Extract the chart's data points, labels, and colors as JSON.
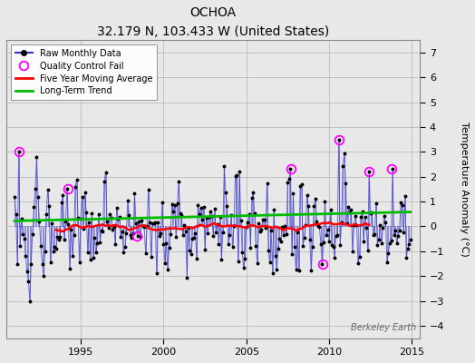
{
  "title": "OCHOA",
  "subtitle": "32.179 N, 103.433 W (United States)",
  "ylabel": "Temperature Anomaly (°C)",
  "watermark": "Berkeley Earth",
  "ylim": [
    -4.5,
    7.5
  ],
  "yticks": [
    -4,
    -3,
    -2,
    -1,
    0,
    1,
    2,
    3,
    4,
    5,
    6,
    7
  ],
  "xlim": [
    1990.5,
    2015.5
  ],
  "xticks": [
    1995,
    2000,
    2005,
    2010,
    2015
  ],
  "raw_color": "#3333cc",
  "moving_avg_color": "#ff0000",
  "trend_color": "#00bb00",
  "qc_fail_color": "#ff00ff",
  "background_color": "#e8e8e8",
  "grid_color": "#bbbbbb",
  "figsize": [
    5.24,
    4.0
  ],
  "dpi": 100
}
